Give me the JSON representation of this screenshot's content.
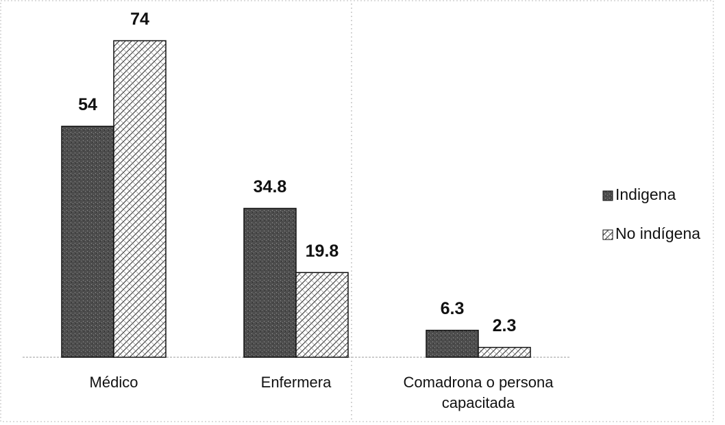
{
  "chart_data": {
    "type": "bar",
    "categories": [
      "Médico",
      "Enfermera",
      "Comadrona o persona capacitada"
    ],
    "series": [
      {
        "name": "Indigena",
        "color": "#4d4d4d",
        "pattern": "stipple",
        "values": [
          54,
          34.8,
          6.3
        ]
      },
      {
        "name": "No indígena",
        "color": "#ffffff",
        "pattern": "crosshatch",
        "values": [
          74,
          19.8,
          2.3
        ]
      }
    ],
    "ylim": [
      0,
      80
    ],
    "legend": "right"
  }
}
